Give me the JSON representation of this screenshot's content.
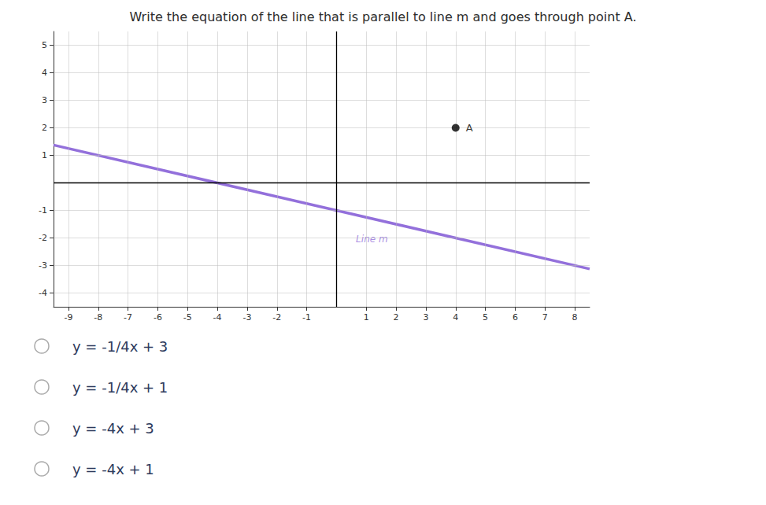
{
  "chart_data": {
    "type": "line",
    "title": "Write the equation of the line that is parallel to line m and goes through point A.",
    "xlim": [
      -9.5,
      8.5
    ],
    "ylim": [
      -4.5,
      5.5
    ],
    "xticks": [
      -9,
      -8,
      -7,
      -6,
      -5,
      -4,
      -3,
      -2,
      -1,
      1,
      2,
      3,
      4,
      5,
      6,
      7,
      8
    ],
    "yticks": [
      -4,
      -3,
      -2,
      -1,
      1,
      2,
      3,
      4,
      5
    ],
    "grid": true,
    "series": [
      {
        "type": "line",
        "color": "#9370DB",
        "x": [
          -9.5,
          8.5
        ],
        "values": [
          1.375,
          -3.125
        ]
      },
      {
        "name": "A",
        "type": "scatter",
        "color": "#000000",
        "marker": "circle",
        "x": [
          4
        ],
        "values": [
          2
        ]
      }
    ],
    "annotations": [
      {
        "text": "Line m",
        "x": 0.6,
        "y": -2.05
      },
      {
        "text": "y = -1/4x + 3"
      },
      {
        "text": "y = -1/4x + 1"
      },
      {
        "text": "y = -4x + 3"
      },
      {
        "text": "y = -4x + 1"
      }
    ]
  }
}
